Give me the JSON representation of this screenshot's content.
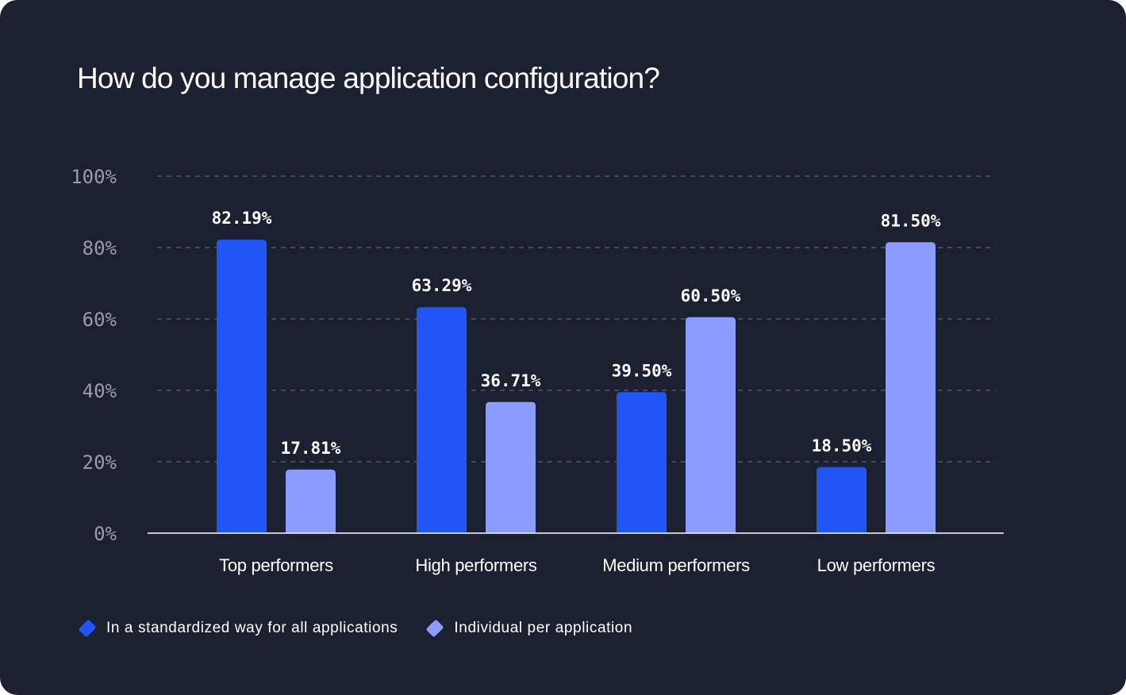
{
  "chart_data": {
    "type": "bar",
    "title": "How do you manage application configuration?",
    "categories": [
      "Top performers",
      "High performers",
      "Medium performers",
      "Low performers"
    ],
    "series": [
      {
        "name": "In a standardized way for all applications",
        "color": "#2155f5",
        "values": [
          82.19,
          63.29,
          39.5,
          18.5
        ],
        "labels": [
          "82.19%",
          "63.29%",
          "39.50%",
          "18.50%"
        ]
      },
      {
        "name": "Individual per application",
        "color": "#8c9bff",
        "values": [
          17.81,
          36.71,
          60.5,
          81.5
        ],
        "labels": [
          "17.81%",
          "36.71%",
          "60.50%",
          "81.50%"
        ]
      }
    ],
    "ylim": [
      0,
      100
    ],
    "yticks": [
      0,
      20,
      40,
      60,
      80,
      100
    ],
    "ytick_labels": [
      "0%",
      "20%",
      "40%",
      "60%",
      "80%",
      "100%"
    ],
    "grid": true,
    "legend": "bottom-left",
    "xlabel": "",
    "ylabel": ""
  }
}
